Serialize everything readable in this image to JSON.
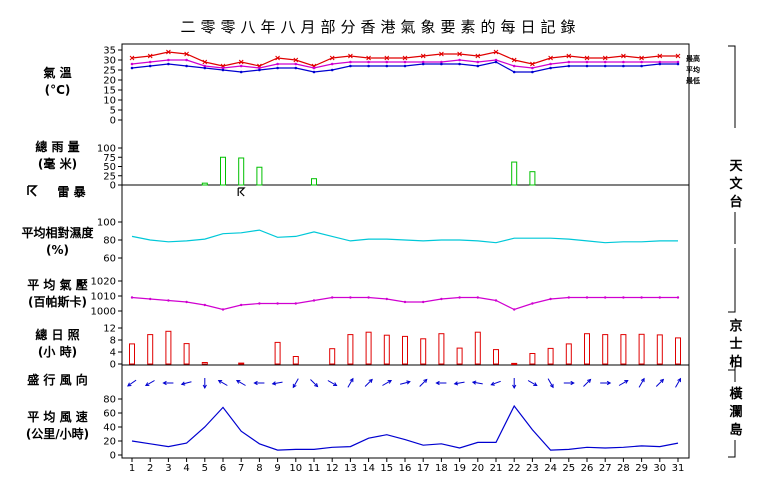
{
  "page_title": "二零零八年八月部分香港氣象要素的每日記錄",
  "panel_labels": {
    "temp": [
      "氣 溫",
      "(°C)"
    ],
    "rain": [
      "總 雨 量",
      "(毫 米)"
    ],
    "thunder": [
      "雷 暴"
    ],
    "humidity": [
      "平均相對濕度",
      "(%)"
    ],
    "pressure": [
      "平 均 氣 壓",
      "(百帕斯卡)"
    ],
    "sunshine": [
      "總 日 照",
      "(小 時)"
    ],
    "wind_dir": [
      "盛 行 風 向"
    ],
    "wind_speed": [
      "平 均 風 速",
      "(公里/小時)"
    ]
  },
  "stations": {
    "observatory": "天文台",
    "kings_park": "京士柏",
    "waglan": "橫瀾島"
  },
  "thunder_icon": "lightning-flag-icon",
  "chart_data": [
    {
      "type": "line",
      "title": "氣溫",
      "ylabel": "(°C)",
      "x": [
        1,
        2,
        3,
        4,
        5,
        6,
        7,
        8,
        9,
        10,
        11,
        12,
        13,
        14,
        15,
        16,
        17,
        18,
        19,
        20,
        21,
        22,
        23,
        24,
        25,
        26,
        27,
        28,
        29,
        30,
        31
      ],
      "ylim": [
        0,
        35
      ],
      "yticks": [
        0,
        5,
        10,
        15,
        20,
        25,
        30,
        35
      ],
      "series": [
        {
          "name": "最高",
          "color": "#e00000",
          "values": [
            31,
            32,
            34,
            33,
            29,
            27,
            29,
            27,
            31,
            30,
            27,
            31,
            32,
            31,
            31,
            31,
            32,
            33,
            33,
            32,
            34,
            30,
            28,
            31,
            32,
            31,
            31,
            32,
            31,
            32,
            32
          ]
        },
        {
          "name": "平均",
          "color": "#d000d0",
          "values": [
            28,
            29,
            30,
            30,
            27,
            26,
            27,
            26,
            28,
            28,
            26,
            28,
            29,
            29,
            29,
            29,
            29,
            29,
            30,
            29,
            30,
            27,
            26,
            28,
            29,
            29,
            29,
            29,
            29,
            29,
            29
          ]
        },
        {
          "name": "最低",
          "color": "#0000d0",
          "values": [
            26,
            27,
            28,
            27,
            26,
            25,
            24,
            25,
            26,
            26,
            24,
            25,
            27,
            27,
            27,
            27,
            28,
            28,
            28,
            27,
            29,
            24,
            24,
            26,
            27,
            27,
            27,
            27,
            27,
            28,
            28
          ]
        }
      ]
    },
    {
      "type": "bar",
      "title": "總雨量",
      "ylabel": "(毫米)",
      "color": "#00c000",
      "x": [
        1,
        2,
        3,
        4,
        5,
        6,
        7,
        8,
        9,
        10,
        11,
        12,
        13,
        14,
        15,
        16,
        17,
        18,
        19,
        20,
        21,
        22,
        23,
        24,
        25,
        26,
        27,
        28,
        29,
        30,
        31
      ],
      "ylim": [
        0,
        100
      ],
      "yticks": [
        0,
        25,
        50,
        75,
        100
      ],
      "values": [
        0,
        0,
        0,
        0,
        5,
        75,
        73,
        48,
        0,
        0,
        17,
        0,
        0,
        0,
        0,
        0,
        0,
        0,
        0,
        0,
        0,
        62,
        36,
        0,
        0,
        0,
        0,
        0,
        0,
        0,
        0
      ]
    },
    {
      "type": "scatter",
      "title": "雷暴",
      "thunder_days": [
        7
      ]
    },
    {
      "type": "line",
      "title": "平均相對濕度",
      "ylabel": "(%)",
      "color": "#00c8d8",
      "x": [
        1,
        2,
        3,
        4,
        5,
        6,
        7,
        8,
        9,
        10,
        11,
        12,
        13,
        14,
        15,
        16,
        17,
        18,
        19,
        20,
        21,
        22,
        23,
        24,
        25,
        26,
        27,
        28,
        29,
        30,
        31
      ],
      "ylim": [
        60,
        100
      ],
      "yticks": [
        60,
        80,
        100
      ],
      "values": [
        84,
        80,
        78,
        79,
        81,
        87,
        88,
        91,
        83,
        84,
        89,
        84,
        79,
        81,
        81,
        80,
        79,
        80,
        80,
        79,
        77,
        82,
        82,
        82,
        81,
        79,
        77,
        78,
        78,
        79,
        79
      ]
    },
    {
      "type": "line",
      "title": "平均氣壓",
      "ylabel": "(百帕斯卡)",
      "color": "#d000d0",
      "x": [
        1,
        2,
        3,
        4,
        5,
        6,
        7,
        8,
        9,
        10,
        11,
        12,
        13,
        14,
        15,
        16,
        17,
        18,
        19,
        20,
        21,
        22,
        23,
        24,
        25,
        26,
        27,
        28,
        29,
        30,
        31
      ],
      "ylim": [
        1000,
        1020
      ],
      "yticks": [
        1000,
        1010,
        1020
      ],
      "values": [
        1009,
        1008,
        1007,
        1006,
        1004,
        1001,
        1004,
        1005,
        1005,
        1005,
        1007,
        1009,
        1009,
        1009,
        1008,
        1006,
        1006,
        1008,
        1009,
        1009,
        1007,
        1001,
        1005,
        1008,
        1009,
        1009,
        1009,
        1009,
        1009,
        1009,
        1009
      ]
    },
    {
      "type": "bar",
      "title": "總日照",
      "ylabel": "(小時)",
      "color": "#e00000",
      "x": [
        1,
        2,
        3,
        4,
        5,
        6,
        7,
        8,
        9,
        10,
        11,
        12,
        13,
        14,
        15,
        16,
        17,
        18,
        19,
        20,
        21,
        22,
        23,
        24,
        25,
        26,
        27,
        28,
        29,
        30,
        31
      ],
      "ylim": [
        0,
        12
      ],
      "yticks": [
        0,
        4,
        8,
        12
      ],
      "values": [
        6.7,
        9.8,
        10.9,
        6.8,
        0.5,
        0,
        0.3,
        0,
        7.2,
        2.5,
        0,
        5.1,
        9.8,
        10.6,
        9.6,
        9.2,
        8.4,
        10.1,
        5.3,
        10.6,
        4.8,
        0.2,
        3.5,
        5.2,
        6.7,
        10.1,
        9.8,
        9.8,
        9.9,
        9.7,
        8.7
      ]
    },
    {
      "type": "scatter",
      "title": "盛行風向",
      "unit": "degrees (direction toward which the wind blows)",
      "x": [
        1,
        2,
        3,
        4,
        5,
        6,
        7,
        8,
        9,
        10,
        11,
        12,
        13,
        14,
        15,
        16,
        17,
        18,
        19,
        20,
        21,
        22,
        23,
        24,
        25,
        26,
        27,
        28,
        29,
        30,
        31
      ],
      "values": [
        235,
        240,
        270,
        255,
        180,
        300,
        300,
        270,
        260,
        210,
        135,
        120,
        30,
        45,
        60,
        75,
        45,
        270,
        260,
        280,
        250,
        180,
        120,
        150,
        90,
        45,
        90,
        60,
        30,
        45,
        30
      ]
    },
    {
      "type": "line",
      "title": "平均風速",
      "ylabel": "(公里/小時)",
      "color": "#0000d0",
      "x": [
        1,
        2,
        3,
        4,
        5,
        6,
        7,
        8,
        9,
        10,
        11,
        12,
        13,
        14,
        15,
        16,
        17,
        18,
        19,
        20,
        21,
        22,
        23,
        24,
        25,
        26,
        27,
        28,
        29,
        30,
        31
      ],
      "ylim": [
        0,
        80
      ],
      "yticks": [
        0,
        20,
        40,
        60,
        80
      ],
      "values": [
        20,
        16,
        12,
        17,
        40,
        68,
        34,
        16,
        7,
        8,
        8,
        11,
        12,
        24,
        29,
        22,
        14,
        16,
        10,
        18,
        18,
        70,
        36,
        7,
        8,
        11,
        10,
        11,
        13,
        12,
        17
      ]
    }
  ]
}
